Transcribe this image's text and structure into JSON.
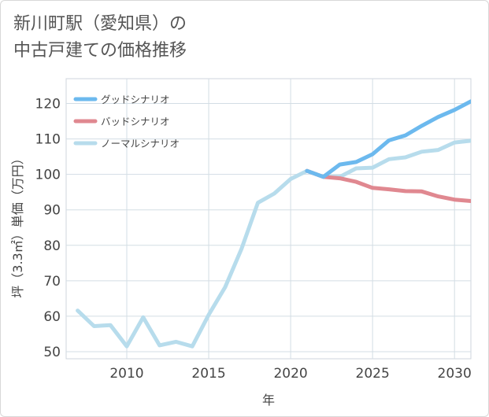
{
  "page": {
    "title_line1": "新川町駅（愛知県）の",
    "title_line2": "中古戸建ての価格推移"
  },
  "chart_data": {
    "type": "line",
    "xlabel": "年",
    "ylabel": "坪（3.3㎡）単価（万円）",
    "xlim": [
      2006.3,
      2031
    ],
    "ylim": [
      48,
      127
    ],
    "x_ticks": [
      2010,
      2015,
      2020,
      2025,
      2030
    ],
    "y_ticks": [
      50,
      60,
      70,
      80,
      90,
      100,
      110,
      120
    ],
    "grid": true,
    "legend_position": "top-left",
    "series": [
      {
        "name": "グッドシナリオ",
        "color": "#6cb9ee",
        "x": [
          2021,
          2022,
          2023,
          2024,
          2025,
          2026,
          2027,
          2028,
          2029,
          2030,
          2031
        ],
        "y": [
          101,
          99.3,
          102.8,
          103.5,
          105.7,
          109.6,
          111,
          113.7,
          116.2,
          118.2,
          120.6
        ]
      },
      {
        "name": "バッドシナリオ",
        "color": "#e08890",
        "x": [
          2021,
          2022,
          2023,
          2024,
          2025,
          2026,
          2027,
          2028,
          2029,
          2030,
          2031
        ],
        "y": [
          101,
          99.3,
          98.9,
          97.9,
          96.2,
          95.8,
          95.3,
          95.2,
          93.8,
          92.9,
          92.5
        ]
      },
      {
        "name": "ノーマルシナリオ",
        "color": "#b7dcec",
        "x": [
          2007,
          2008,
          2009,
          2010,
          2011,
          2012,
          2013,
          2014,
          2015,
          2016,
          2017,
          2018,
          2019,
          2020,
          2021,
          2022,
          2023,
          2024,
          2025,
          2026,
          2027,
          2028,
          2029,
          2030,
          2031
        ],
        "y": [
          61.6,
          57.2,
          57.5,
          51.5,
          59.7,
          51.8,
          52.8,
          51.5,
          60.4,
          68.2,
          79,
          92,
          94.6,
          98.7,
          101,
          99.3,
          99.3,
          101.7,
          101.9,
          104.3,
          104.8,
          106.4,
          106.9,
          109,
          109.5
        ]
      }
    ]
  }
}
